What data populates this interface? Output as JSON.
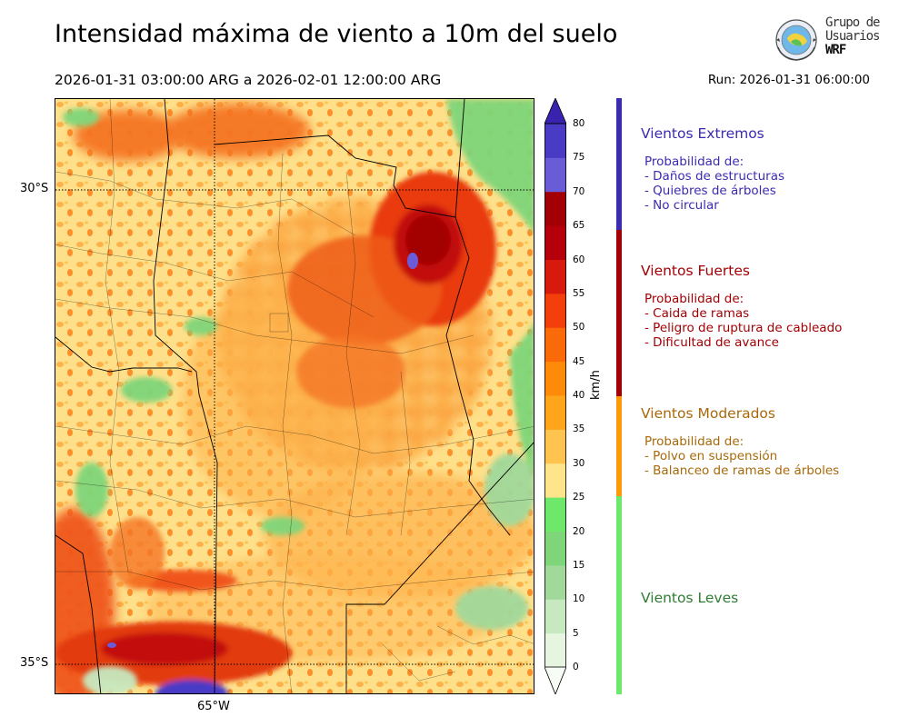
{
  "title": "Intensidad máxima de viento a 10m del suelo",
  "period": "2026-01-31 03:00:00 ARG  a  2026-02-01 12:00:00 ARG",
  "run": "Run: 2026-01-31 06:00:00",
  "logo": {
    "line1": "Grupo de",
    "line2": "Usuarios",
    "line3": "WRF"
  },
  "map": {
    "lat_labels": [
      "30°S",
      "35°S"
    ],
    "lon_labels": [
      "65°W"
    ]
  },
  "colorbar": {
    "unit": "km/h",
    "ticks": [
      "0",
      "5",
      "10",
      "15",
      "20",
      "25",
      "30",
      "35",
      "40",
      "45",
      "50",
      "55",
      "60",
      "65",
      "70",
      "75",
      "80"
    ],
    "colors": [
      "#f7fcf5",
      "#e5f5e0",
      "#c7e9c0",
      "#a1d99b",
      "#7fd67a",
      "#6ee86b",
      "#fee58b",
      "#fec44f",
      "#fea51c",
      "#fe8a0a",
      "#fb6a09",
      "#f23f0c",
      "#d8190e",
      "#b5000b",
      "#a30005",
      "#6a5cd6",
      "#4a3bc5",
      "#3a22b0"
    ]
  },
  "categories": [
    {
      "title": "Vientos Extremos",
      "color": "#3a2bb0",
      "text_color": "#3a2bb0",
      "heading": "Probabilidad de:",
      "items": [
        "- Daños de estructuras",
        "- Quiebres de árboles",
        "- No circular"
      ]
    },
    {
      "title": "Vientos Fuertes",
      "color": "#a30005",
      "text_color": "#a30005",
      "heading": "Probabilidad de:",
      "items": [
        "- Caida de ramas",
        "- Peligro de ruptura de cableado",
        "- Dificultad de avance"
      ]
    },
    {
      "title": "Vientos Moderados",
      "color": "#fe9a0a",
      "text_color": "#a8690a",
      "heading": "Probabilidad de:",
      "items": [
        "- Polvo en suspensión",
        "- Balanceo de ramas de árboles"
      ]
    },
    {
      "title": "Vientos Leves",
      "color": "#6ee86b",
      "text_color": "#2e7d32",
      "heading": "",
      "items": []
    }
  ]
}
